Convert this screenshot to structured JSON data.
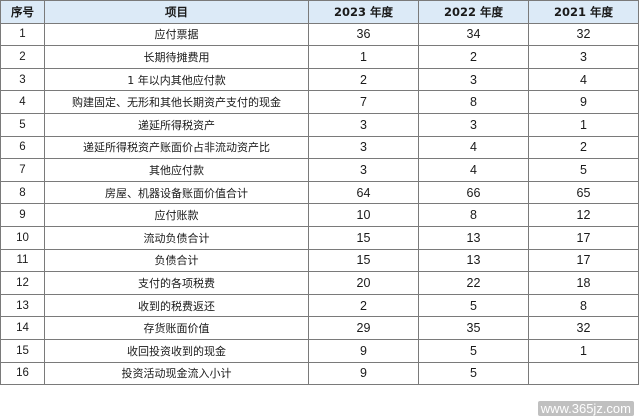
{
  "table": {
    "headers": [
      "序号",
      "项目",
      "2023 年度",
      "2022 年度",
      "2021 年度"
    ],
    "rows": [
      [
        "1",
        "应付票据",
        "36",
        "34",
        "32"
      ],
      [
        "2",
        "长期待摊费用",
        "1",
        "2",
        "3"
      ],
      [
        "3",
        "1 年以内其他应付款",
        "2",
        "3",
        "4"
      ],
      [
        "4",
        "购建固定、无形和其他长期资产支付的现金",
        "7",
        "8",
        "9"
      ],
      [
        "5",
        "递延所得税资产",
        "3",
        "3",
        "1"
      ],
      [
        "6",
        "递延所得税资产账面价占非流动资产比",
        "3",
        "4",
        "2"
      ],
      [
        "7",
        "其他应付款",
        "3",
        "4",
        "5"
      ],
      [
        "8",
        "房屋、机器设备账面价值合计",
        "64",
        "66",
        "65"
      ],
      [
        "9",
        "应付账款",
        "10",
        "8",
        "12"
      ],
      [
        "10",
        "流动负债合计",
        "15",
        "13",
        "17"
      ],
      [
        "11",
        "负债合计",
        "15",
        "13",
        "17"
      ],
      [
        "12",
        "支付的各项税费",
        "20",
        "22",
        "18"
      ],
      [
        "13",
        "收到的税费返还",
        "2",
        "5",
        "8"
      ],
      [
        "14",
        "存货账面价值",
        "29",
        "35",
        "32"
      ],
      [
        "15",
        "收回投资收到的现金",
        "9",
        "5",
        "1"
      ],
      [
        "16",
        "投资活动现金流入小计",
        "9",
        "5",
        ""
      ]
    ]
  },
  "watermark": "www.365jz.com",
  "colors": {
    "header_bg": "#dceaf7",
    "border": "#7a7a7a"
  }
}
